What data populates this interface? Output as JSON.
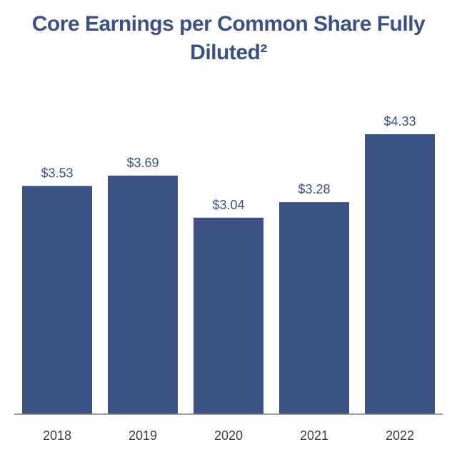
{
  "chart_data": {
    "type": "bar",
    "title": "Core Earnings per Common Share Fully Diluted²",
    "categories": [
      "2018",
      "2019",
      "2020",
      "2021",
      "2022"
    ],
    "values": [
      3.53,
      3.69,
      3.04,
      3.28,
      4.33
    ],
    "data_labels": [
      "$3.53",
      "$3.69",
      "$3.04",
      "$3.28",
      "$4.33"
    ],
    "xlabel": "",
    "ylabel": "",
    "ylim": [
      0,
      4.33
    ],
    "grid": false,
    "legend": "none",
    "colors": {
      "bar": "#3d5385",
      "title": "#3b5185",
      "axis": "#808080"
    }
  }
}
